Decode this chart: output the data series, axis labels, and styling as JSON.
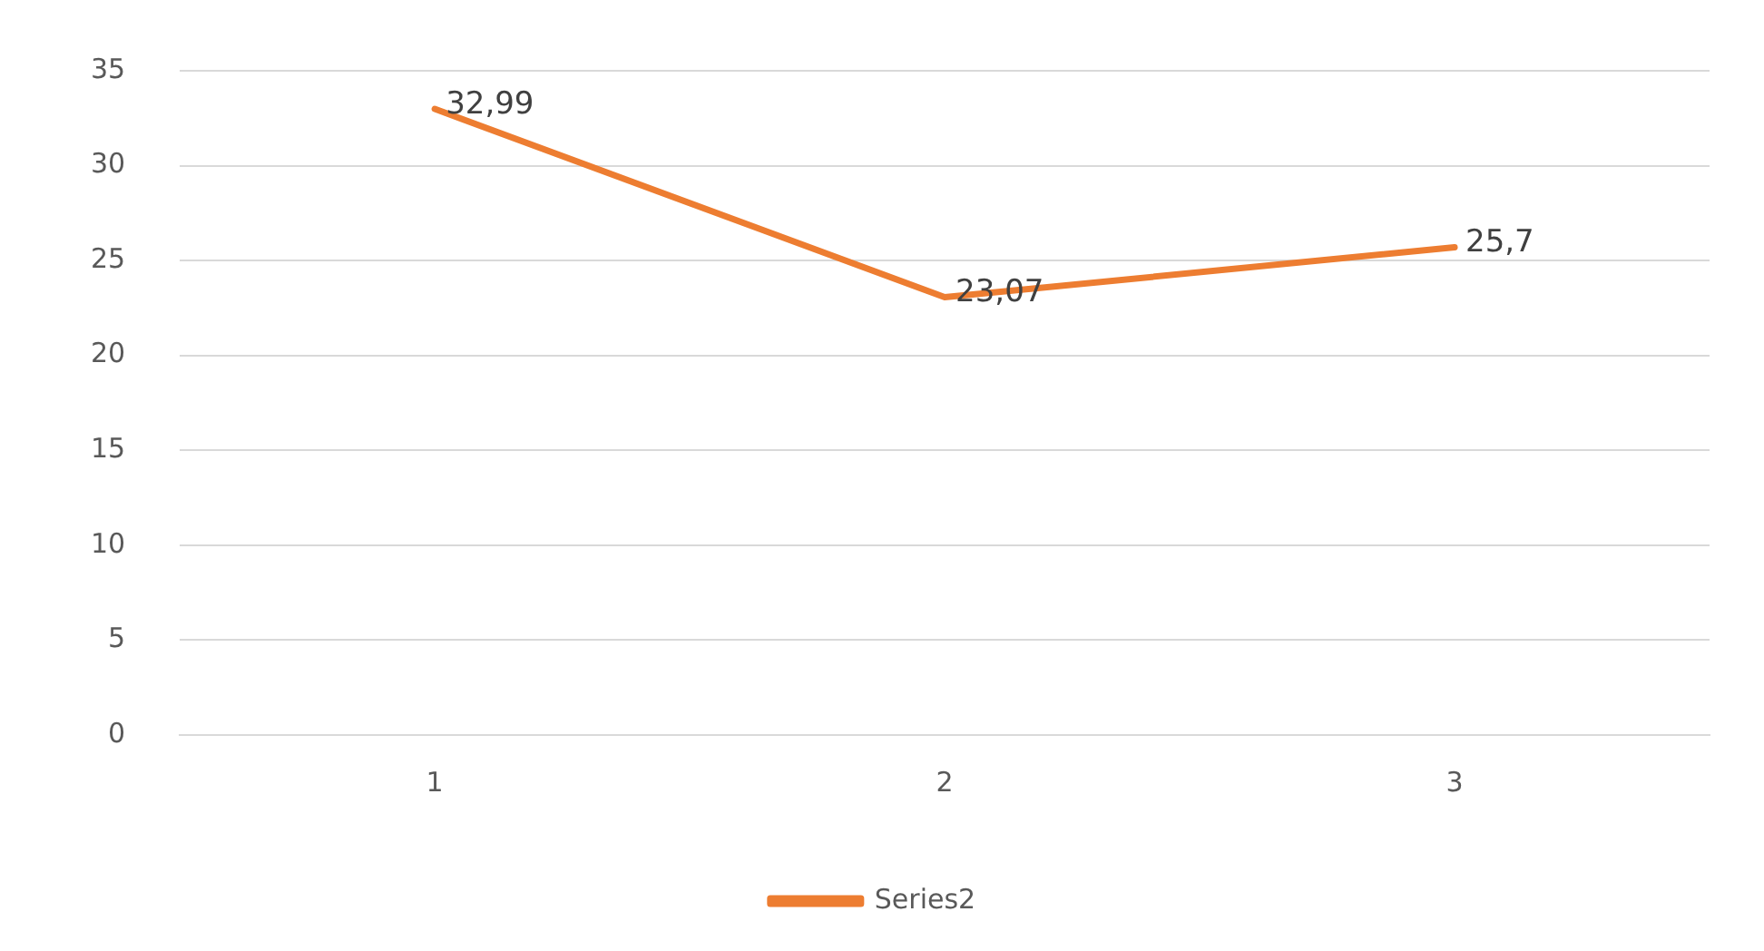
{
  "chart_data": {
    "type": "line",
    "categories": [
      "1",
      "2",
      "3"
    ],
    "series": [
      {
        "name": "Series2",
        "color": "#ed7d31",
        "values": [
          32.99,
          23.07,
          25.7
        ],
        "value_labels": [
          "32,99",
          "23,07",
          "25,7"
        ]
      }
    ],
    "ylim": [
      0,
      35
    ],
    "yticks": [
      0,
      5,
      10,
      15,
      20,
      25,
      30,
      35
    ],
    "grid": "y",
    "legend": "bottom",
    "marker": "none",
    "line_style": "solid"
  }
}
